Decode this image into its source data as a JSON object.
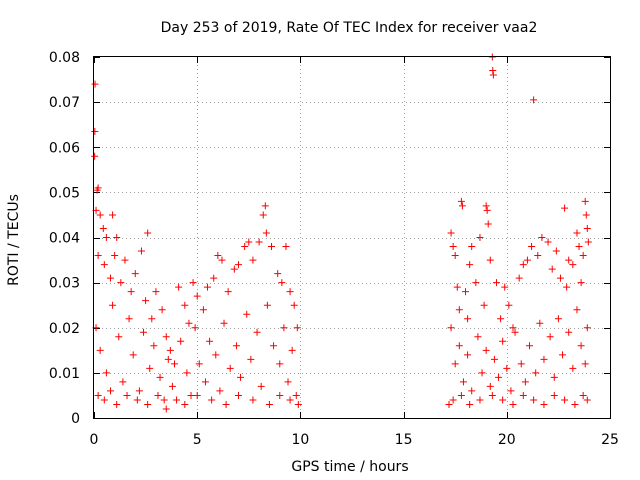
{
  "chart_data": {
    "type": "scatter",
    "title": "Day 253 of 2019, Rate Of TEC Index for receiver vaa2",
    "xlabel": "GPS time / hours",
    "ylabel": "ROTI / TECUs",
    "xlim": [
      0,
      25
    ],
    "ylim": [
      0,
      0.08
    ],
    "xticks": [
      0,
      5,
      10,
      15,
      20,
      25
    ],
    "xtick_labels": [
      "0",
      "5",
      "10",
      "15",
      "20",
      "25"
    ],
    "yticks": [
      0,
      0.01,
      0.02,
      0.03,
      0.04,
      0.05,
      0.06,
      0.07,
      0.08
    ],
    "ytick_labels": [
      "0",
      "0.01",
      "0.02",
      "0.03",
      "0.04",
      "0.05",
      "0.06",
      "0.07",
      "0.08"
    ],
    "grid": true,
    "marker": "+",
    "color": "#ff0000",
    "series": [
      {
        "name": "ROTI",
        "points": [
          [
            0.05,
            0.074
          ],
          [
            0.04,
            0.0635
          ],
          [
            0.03,
            0.058
          ],
          [
            0.2,
            0.051
          ],
          [
            0.15,
            0.0505
          ],
          [
            0.1,
            0.046
          ],
          [
            0.3,
            0.045
          ],
          [
            0.45,
            0.042
          ],
          [
            0.9,
            0.045
          ],
          [
            0.6,
            0.04
          ],
          [
            0.2,
            0.036
          ],
          [
            0.5,
            0.034
          ],
          [
            0.8,
            0.031
          ],
          [
            1.0,
            0.036
          ],
          [
            1.3,
            0.03
          ],
          [
            1.1,
            0.04
          ],
          [
            1.5,
            0.035
          ],
          [
            1.8,
            0.028
          ],
          [
            2.0,
            0.032
          ],
          [
            2.3,
            0.037
          ],
          [
            2.5,
            0.026
          ],
          [
            2.6,
            0.041
          ],
          [
            2.8,
            0.022
          ],
          [
            3.0,
            0.028
          ],
          [
            3.3,
            0.024
          ],
          [
            3.5,
            0.018
          ],
          [
            3.7,
            0.015
          ],
          [
            3.9,
            0.012
          ],
          [
            4.1,
            0.029
          ],
          [
            4.4,
            0.025
          ],
          [
            4.6,
            0.021
          ],
          [
            4.8,
            0.03
          ],
          [
            5.0,
            0.027
          ],
          [
            5.3,
            0.024
          ],
          [
            5.5,
            0.029
          ],
          [
            5.8,
            0.031
          ],
          [
            6.0,
            0.036
          ],
          [
            6.2,
            0.035
          ],
          [
            6.5,
            0.028
          ],
          [
            6.8,
            0.033
          ],
          [
            7.0,
            0.034
          ],
          [
            7.3,
            0.038
          ],
          [
            7.5,
            0.039
          ],
          [
            7.7,
            0.035
          ],
          [
            8.0,
            0.039
          ],
          [
            8.2,
            0.045
          ],
          [
            8.3,
            0.047
          ],
          [
            8.35,
            0.041
          ],
          [
            8.6,
            0.038
          ],
          [
            8.9,
            0.032
          ],
          [
            9.1,
            0.03
          ],
          [
            9.3,
            0.038
          ],
          [
            9.5,
            0.028
          ],
          [
            9.7,
            0.025
          ],
          [
            9.85,
            0.02
          ],
          [
            0.1,
            0.02
          ],
          [
            0.3,
            0.015
          ],
          [
            0.6,
            0.01
          ],
          [
            0.9,
            0.025
          ],
          [
            1.2,
            0.018
          ],
          [
            1.4,
            0.008
          ],
          [
            1.7,
            0.022
          ],
          [
            1.9,
            0.014
          ],
          [
            2.2,
            0.006
          ],
          [
            2.4,
            0.019
          ],
          [
            2.7,
            0.011
          ],
          [
            2.9,
            0.016
          ],
          [
            3.2,
            0.009
          ],
          [
            3.4,
            0.004
          ],
          [
            3.6,
            0.013
          ],
          [
            3.8,
            0.007
          ],
          [
            4.2,
            0.017
          ],
          [
            4.5,
            0.01
          ],
          [
            4.7,
            0.005
          ],
          [
            4.9,
            0.02
          ],
          [
            5.1,
            0.012
          ],
          [
            5.4,
            0.008
          ],
          [
            5.6,
            0.017
          ],
          [
            5.9,
            0.014
          ],
          [
            6.1,
            0.006
          ],
          [
            6.3,
            0.021
          ],
          [
            6.6,
            0.011
          ],
          [
            6.9,
            0.016
          ],
          [
            7.1,
            0.009
          ],
          [
            7.4,
            0.023
          ],
          [
            7.6,
            0.013
          ],
          [
            7.9,
            0.019
          ],
          [
            8.1,
            0.007
          ],
          [
            8.4,
            0.025
          ],
          [
            8.7,
            0.016
          ],
          [
            9.0,
            0.012
          ],
          [
            9.2,
            0.02
          ],
          [
            9.4,
            0.008
          ],
          [
            9.6,
            0.015
          ],
          [
            9.8,
            0.005
          ],
          [
            0.2,
            0.005
          ],
          [
            0.5,
            0.004
          ],
          [
            0.8,
            0.006
          ],
          [
            1.1,
            0.003
          ],
          [
            1.6,
            0.005
          ],
          [
            2.1,
            0.004
          ],
          [
            2.6,
            0.003
          ],
          [
            3.1,
            0.005
          ],
          [
            3.5,
            0.002
          ],
          [
            4.0,
            0.004
          ],
          [
            4.4,
            0.003
          ],
          [
            5.0,
            0.005
          ],
          [
            5.7,
            0.004
          ],
          [
            6.4,
            0.003
          ],
          [
            7.0,
            0.005
          ],
          [
            7.7,
            0.004
          ],
          [
            8.5,
            0.003
          ],
          [
            9.0,
            0.005
          ],
          [
            9.5,
            0.004
          ],
          [
            9.9,
            0.003
          ],
          [
            17.2,
            0.003
          ],
          [
            17.3,
            0.041
          ],
          [
            17.4,
            0.038
          ],
          [
            17.5,
            0.036
          ],
          [
            17.6,
            0.029
          ],
          [
            17.7,
            0.024
          ],
          [
            17.8,
            0.048
          ],
          [
            17.85,
            0.047
          ],
          [
            18.0,
            0.028
          ],
          [
            18.1,
            0.022
          ],
          [
            18.2,
            0.034
          ],
          [
            18.3,
            0.038
          ],
          [
            18.5,
            0.03
          ],
          [
            18.7,
            0.04
          ],
          [
            18.9,
            0.025
          ],
          [
            19.0,
            0.047
          ],
          [
            19.05,
            0.046
          ],
          [
            19.1,
            0.043
          ],
          [
            19.2,
            0.035
          ],
          [
            19.3,
            0.08
          ],
          [
            19.32,
            0.077
          ],
          [
            19.35,
            0.076
          ],
          [
            19.5,
            0.03
          ],
          [
            19.7,
            0.022
          ],
          [
            19.9,
            0.029
          ],
          [
            20.1,
            0.025
          ],
          [
            20.3,
            0.02
          ],
          [
            20.6,
            0.031
          ],
          [
            20.8,
            0.034
          ],
          [
            21.0,
            0.035
          ],
          [
            21.2,
            0.038
          ],
          [
            21.3,
            0.0705
          ],
          [
            21.5,
            0.036
          ],
          [
            21.7,
            0.04
          ],
          [
            22.0,
            0.039
          ],
          [
            22.2,
            0.033
          ],
          [
            22.4,
            0.037
          ],
          [
            22.6,
            0.031
          ],
          [
            22.8,
            0.0465
          ],
          [
            23.0,
            0.035
          ],
          [
            23.2,
            0.034
          ],
          [
            23.4,
            0.041
          ],
          [
            23.5,
            0.038
          ],
          [
            23.6,
            0.03
          ],
          [
            23.8,
            0.048
          ],
          [
            23.85,
            0.045
          ],
          [
            23.9,
            0.042
          ],
          [
            23.95,
            0.039
          ],
          [
            23.7,
            0.036
          ],
          [
            22.9,
            0.029
          ],
          [
            17.3,
            0.02
          ],
          [
            17.5,
            0.012
          ],
          [
            17.7,
            0.016
          ],
          [
            17.9,
            0.008
          ],
          [
            18.1,
            0.014
          ],
          [
            18.3,
            0.006
          ],
          [
            18.6,
            0.018
          ],
          [
            18.8,
            0.01
          ],
          [
            19.0,
            0.015
          ],
          [
            19.2,
            0.007
          ],
          [
            19.4,
            0.013
          ],
          [
            19.6,
            0.009
          ],
          [
            19.8,
            0.017
          ],
          [
            20.0,
            0.011
          ],
          [
            20.2,
            0.006
          ],
          [
            20.4,
            0.019
          ],
          [
            20.7,
            0.012
          ],
          [
            20.9,
            0.008
          ],
          [
            21.1,
            0.016
          ],
          [
            21.4,
            0.01
          ],
          [
            21.6,
            0.021
          ],
          [
            21.8,
            0.013
          ],
          [
            22.1,
            0.018
          ],
          [
            22.3,
            0.009
          ],
          [
            22.5,
            0.022
          ],
          [
            22.7,
            0.014
          ],
          [
            23.0,
            0.019
          ],
          [
            23.2,
            0.011
          ],
          [
            23.4,
            0.024
          ],
          [
            23.6,
            0.016
          ],
          [
            23.8,
            0.012
          ],
          [
            23.9,
            0.02
          ],
          [
            17.4,
            0.004
          ],
          [
            17.8,
            0.005
          ],
          [
            18.2,
            0.003
          ],
          [
            18.7,
            0.004
          ],
          [
            19.3,
            0.005
          ],
          [
            19.8,
            0.004
          ],
          [
            20.3,
            0.003
          ],
          [
            20.8,
            0.005
          ],
          [
            21.3,
            0.004
          ],
          [
            21.8,
            0.003
          ],
          [
            22.3,
            0.005
          ],
          [
            22.8,
            0.004
          ],
          [
            23.3,
            0.003
          ],
          [
            23.7,
            0.005
          ],
          [
            23.9,
            0.004
          ]
        ]
      }
    ]
  }
}
